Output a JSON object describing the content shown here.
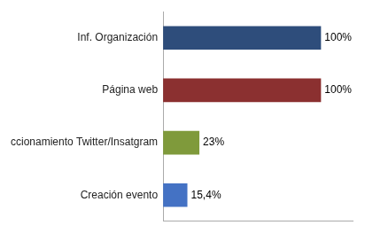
{
  "chart_data": {
    "type": "bar",
    "orientation": "horizontal",
    "categories": [
      "Creación evento",
      "ccionamiento Twitter/Insatgram",
      "Página web",
      "Inf. Organización"
    ],
    "values": [
      15.4,
      23,
      100,
      100
    ],
    "value_labels": [
      "15,4%",
      "23%",
      "100%",
      "100%"
    ],
    "data_labels": true,
    "colors": [
      "#4472c4",
      "#7f9a3b",
      "#8b3030",
      "#2e4d7b"
    ],
    "xlim": [
      0,
      120
    ],
    "grid": false,
    "tick_labels": "y"
  }
}
